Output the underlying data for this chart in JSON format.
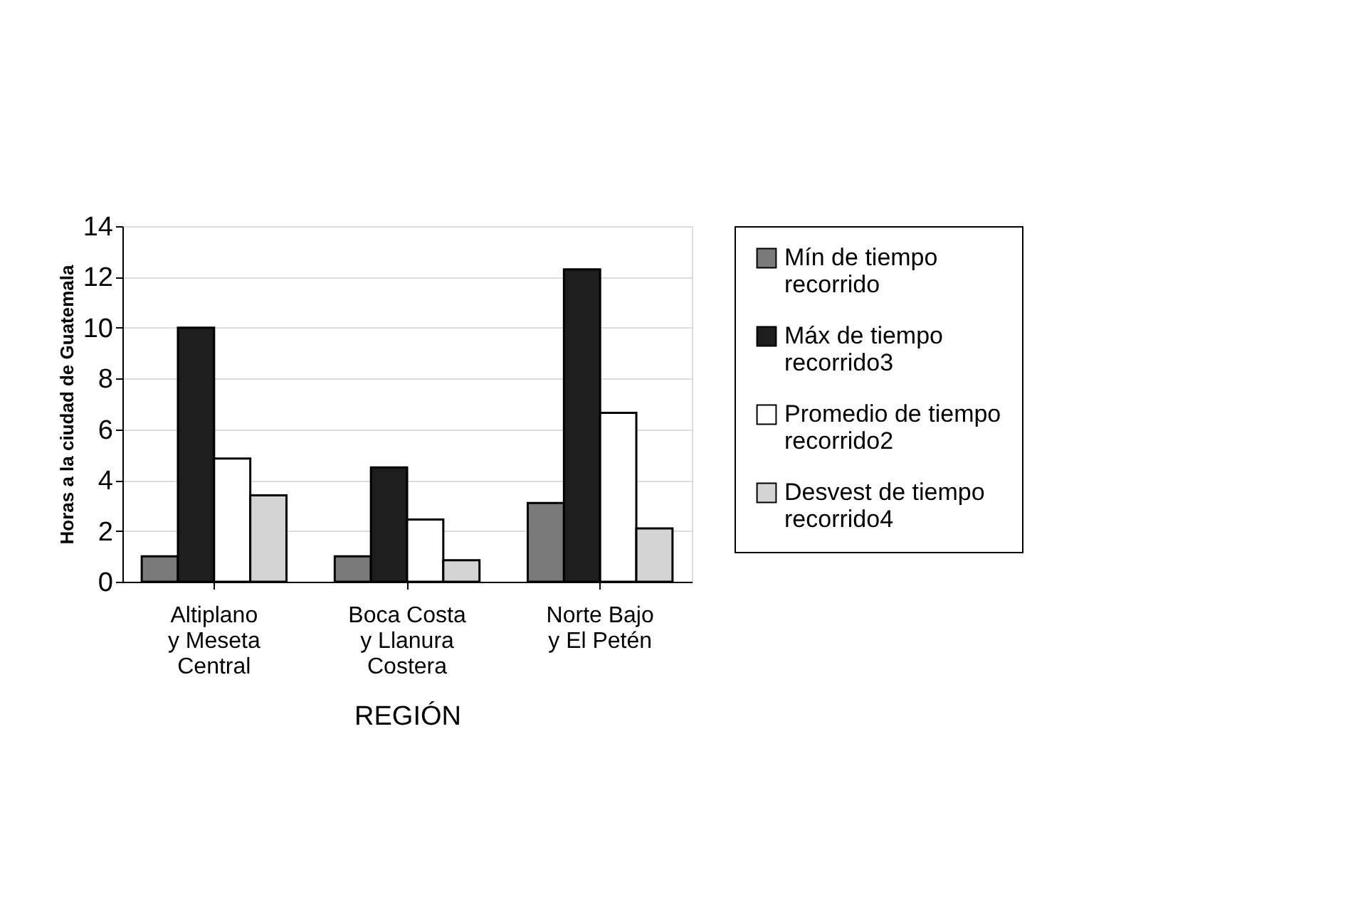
{
  "chart_data": {
    "type": "bar",
    "xlabel": "REGIÓN",
    "ylabel": "Horas a la ciudad de Guatemala",
    "categories": [
      "Altiplano y Meseta Central",
      "Boca Costa y Llanura Costera",
      "Norte Bajo y El Petén"
    ],
    "series": [
      {
        "name": "Mín de tiempo recorrido",
        "color": "#7a7a7a",
        "values": [
          1,
          1,
          3.1
        ]
      },
      {
        "name": "Máx de tiempo recorrido3",
        "color": "#1e1e1e",
        "values": [
          10,
          4.5,
          12.3
        ]
      },
      {
        "name": "Promedio de tiempo recorrido2",
        "color": "#ffffff",
        "values": [
          4.85,
          2.45,
          6.65
        ]
      },
      {
        "name": "Desvest de tiempo recorrido4",
        "color": "#d4d4d4",
        "values": [
          3.4,
          0.85,
          2.1
        ]
      }
    ],
    "ylim": [
      0,
      14
    ],
    "yticks": [
      0,
      2,
      4,
      6,
      8,
      10,
      12,
      14
    ],
    "grid": "y",
    "legend": "right"
  }
}
